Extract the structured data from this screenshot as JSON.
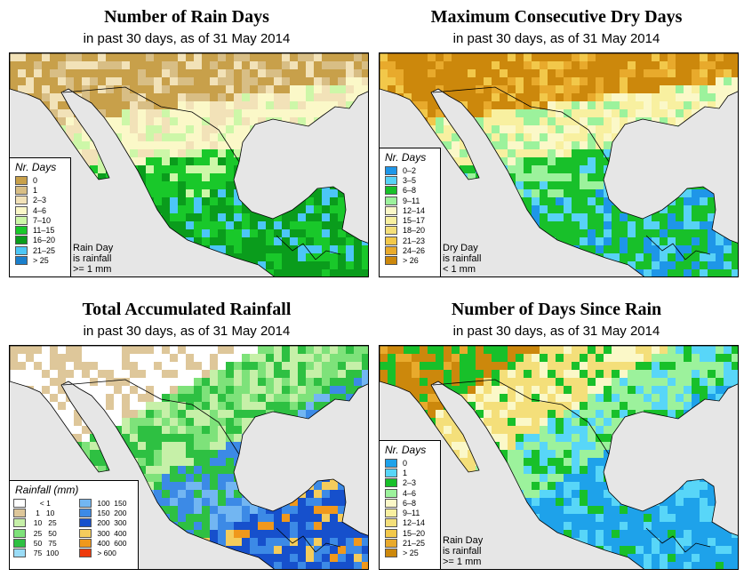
{
  "panels": [
    {
      "id": "rain-days",
      "title": "Number of Rain Days",
      "subtitle": "in past 30 days, as of  31 May 2014",
      "legend_title": "Nr. Days",
      "legend": [
        {
          "label": "0",
          "color": "#c8a04a"
        },
        {
          "label": "1",
          "color": "#d8be85"
        },
        {
          "label": "2–3",
          "color": "#f2e2b8"
        },
        {
          "label": "4–6",
          "color": "#fbf8c8"
        },
        {
          "label": "7–10",
          "color": "#cdf7a8"
        },
        {
          "label": "11–15",
          "color": "#19c82a"
        },
        {
          "label": "16–20",
          "color": "#0a9c1c"
        },
        {
          "label": "21–25",
          "color": "#4cc6f6"
        },
        {
          "label": "> 25",
          "color": "#1a7fcc"
        }
      ],
      "note": [
        "Rain Day",
        "is rainfall",
        ">= 1 mm"
      ]
    },
    {
      "id": "dry-days",
      "title": "Maximum Consecutive Dry Days",
      "subtitle": "in past 30 days, as of  31 May 2014",
      "legend_title": "Nr. Days",
      "legend": [
        {
          "label": "0–2",
          "color": "#1e96e8"
        },
        {
          "label": "3–5",
          "color": "#58d2f6"
        },
        {
          "label": "6–8",
          "color": "#18c02a"
        },
        {
          "label": "9–11",
          "color": "#9cf29c"
        },
        {
          "label": "12–14",
          "color": "#fbf8c8"
        },
        {
          "label": "15–17",
          "color": "#f8f0a0"
        },
        {
          "label": "18–20",
          "color": "#f4df7a"
        },
        {
          "label": "21–23",
          "color": "#f2c84a"
        },
        {
          "label": "24–26",
          "color": "#e8aa2c"
        },
        {
          "label": "> 26",
          "color": "#cc880c"
        }
      ],
      "note": [
        "Dry Day",
        "is rainfall",
        "< 1 mm"
      ]
    },
    {
      "id": "total-rainfall",
      "title": "Total Accumulated Rainfall",
      "subtitle": "in past 30 days, as of  31 May 2014",
      "legend_title": "Rainfall (mm)",
      "legend": [
        {
          "label": "     < 1",
          "color": "#ffffff"
        },
        {
          "label": "   1   10",
          "color": "#dec79a"
        },
        {
          "label": "  10   25",
          "color": "#c6f0a8"
        },
        {
          "label": "  25   50",
          "color": "#7ee27a"
        },
        {
          "label": "  50   75",
          "color": "#2ec042"
        },
        {
          "label": "  75  100",
          "color": "#9adcf6"
        },
        {
          "label": " 100  150",
          "color": "#72b6f2"
        },
        {
          "label": " 150  200",
          "color": "#3c8ae6"
        },
        {
          "label": " 200  300",
          "color": "#1650cc"
        },
        {
          "label": " 300  400",
          "color": "#f4cc5c"
        },
        {
          "label": " 400  600",
          "color": "#f0981c"
        },
        {
          "label": " > 600",
          "color": "#ee3a0c"
        }
      ],
      "note": []
    },
    {
      "id": "since-rain",
      "title": "Number of Days Since Rain",
      "subtitle": "in past 30 days, as of  31 May 2014",
      "legend_title": "Nr. Days",
      "legend": [
        {
          "label": "0",
          "color": "#1ea2ea"
        },
        {
          "label": "1",
          "color": "#58d6f8"
        },
        {
          "label": "2–3",
          "color": "#18c02a"
        },
        {
          "label": "4–6",
          "color": "#9cf29c"
        },
        {
          "label": "6–8",
          "color": "#fbf8c8"
        },
        {
          "label": "9–11",
          "color": "#f8f0a0"
        },
        {
          "label": "12–14",
          "color": "#f4df7a"
        },
        {
          "label": "15–20",
          "color": "#f2c84a"
        },
        {
          "label": "21–25",
          "color": "#e8aa2c"
        },
        {
          "label": "> 25",
          "color": "#cc880c"
        }
      ],
      "note": [
        "Rain Day",
        "is rainfall",
        ">= 1 mm"
      ]
    }
  ],
  "colors": {
    "ocean": "#e6e6e6",
    "border": "#000000"
  }
}
